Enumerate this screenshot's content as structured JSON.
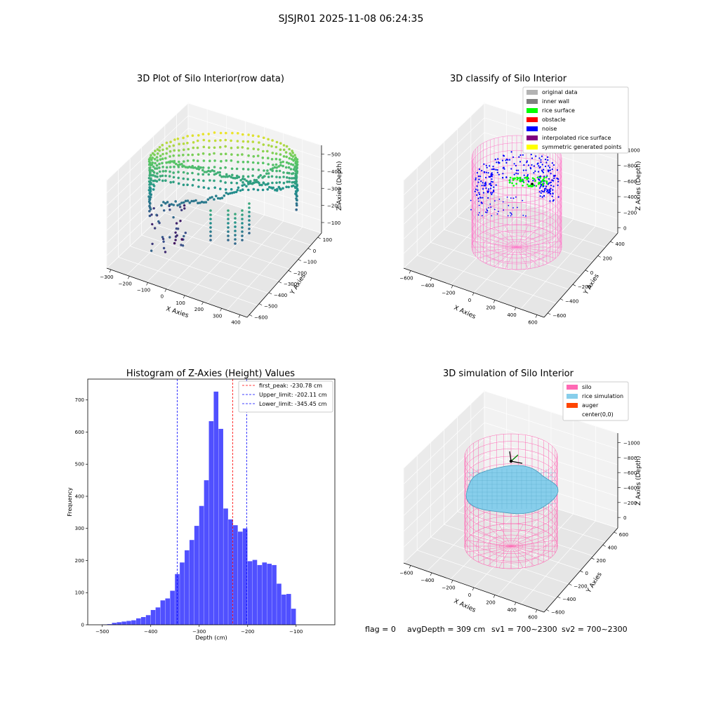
{
  "figure": {
    "suptitle": "SJSJR01 2025-11-08 06:24:35",
    "footer": {
      "flag": "flag = 0",
      "avg_depth": "avgDepth = 309 cm",
      "sv1": "sv1 = 700~2300",
      "sv2": "sv2 = 700~2300"
    }
  },
  "chart_data": [
    {
      "id": "raw",
      "type": "scatter",
      "title": "3D Plot of Silo Interior(row data)",
      "xlabel": "X Axies",
      "ylabel": "Y Axies",
      "zlabel": "Z Axies (Depth)",
      "xticks": [
        "−300",
        "−200",
        "−100",
        "0",
        "100",
        "200",
        "300",
        "400"
      ],
      "yticks": [
        "100",
        "0",
        "−100",
        "−200",
        "−300",
        "−400",
        "−500",
        "−600"
      ],
      "zticks": [
        "−100",
        "−200",
        "−300",
        "−400",
        "−500"
      ],
      "colormap": "viridis"
    },
    {
      "id": "classify",
      "type": "scatter",
      "title": "3D classify of Silo Interior",
      "xlabel": "X Axies",
      "ylabel": "Y Axies",
      "zlabel": "Z Axies (Depth)",
      "xticks": [
        "−600",
        "−400",
        "−200",
        "0",
        "200",
        "400",
        "600"
      ],
      "yticks": [
        "400",
        "200",
        "0",
        "−200",
        "−400",
        "−600"
      ],
      "zticks": [
        "0",
        "−200",
        "−400",
        "−600",
        "−800",
        "−1000"
      ],
      "legend_position": "top-right",
      "legend": [
        {
          "label": "original data",
          "color": "#b3b3b3"
        },
        {
          "label": "inner wall",
          "color": "#808080"
        },
        {
          "label": "rice surface",
          "color": "#00ff00"
        },
        {
          "label": "obstacle",
          "color": "#ff0000"
        },
        {
          "label": "noise",
          "color": "#0000ff"
        },
        {
          "label": "interpolated rice surface",
          "color": "#800080"
        },
        {
          "label": "symmetric generated points",
          "color": "#ffff00"
        }
      ],
      "wire_color": "#ff77c8"
    },
    {
      "id": "histogram",
      "type": "bar",
      "title": "Histogram of Z-Axies (Height) Values",
      "xlabel": "Depth (cm)",
      "ylabel": "Frequency",
      "xlim": [
        -530,
        -20
      ],
      "ylim": [
        0,
        765
      ],
      "xticks": [
        -500,
        -400,
        -300,
        -200,
        -100
      ],
      "yticks": [
        0,
        100,
        200,
        300,
        400,
        500,
        600,
        700
      ],
      "bar_color": "#5050ff",
      "bin_edges_start": -500,
      "bin_width": 10,
      "values": [
        1,
        2,
        6,
        8,
        10,
        12,
        14,
        20,
        24,
        30,
        46,
        54,
        76,
        82,
        106,
        158,
        194,
        232,
        264,
        308,
        370,
        450,
        634,
        726,
        610,
        362,
        328,
        310,
        290,
        300,
        198,
        202,
        186,
        194,
        190,
        186,
        128,
        94,
        96,
        50
      ],
      "lines": [
        {
          "label": "first_peak: -230.78 cm",
          "value": -230.78,
          "color": "#ff0000"
        },
        {
          "label": "Upper_limit: -202.11 cm",
          "value": -202.11,
          "color": "#0000ff"
        },
        {
          "label": "Lower_limit: -345.45 cm",
          "value": -345.45,
          "color": "#0000ff"
        }
      ],
      "legend_position": "top-right"
    },
    {
      "id": "simulation",
      "type": "surface",
      "title": "3D simulation of Silo Interior",
      "xlabel": "X Axies",
      "ylabel": "Y Axies",
      "zlabel": "Z Axies (Depth)",
      "xticks": [
        "−600",
        "−400",
        "−200",
        "0",
        "200",
        "400",
        "600"
      ],
      "yticks": [
        "600",
        "400",
        "200",
        "0",
        "−200",
        "−400",
        "−600"
      ],
      "zticks": [
        "0",
        "−200",
        "−400",
        "−600",
        "−800",
        "−1000"
      ],
      "legend_position": "top-right",
      "legend": [
        {
          "label": "silo",
          "color": "#ff69b4"
        },
        {
          "label": "rice simulation",
          "color": "#87ceeb"
        },
        {
          "label": "auger",
          "color": "#ff4500"
        },
        {
          "label": "center(0,0)",
          "color": "#ffffff"
        }
      ],
      "wire_color": "#ff69b4",
      "surface_color": "#87ceeb"
    }
  ]
}
